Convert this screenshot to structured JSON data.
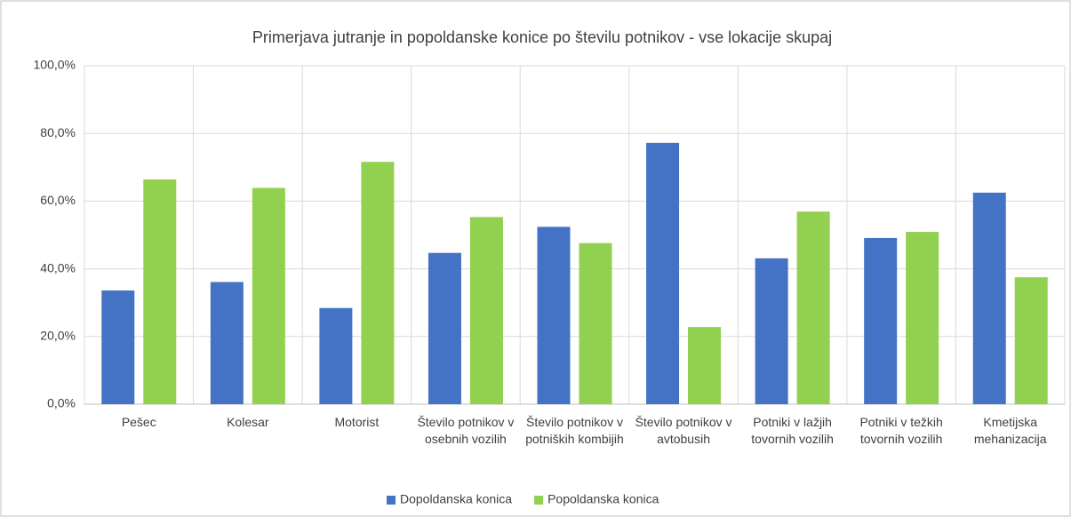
{
  "chart_data": {
    "type": "bar",
    "title": "Primerjava jutranje in popoldanske konice po številu potnikov - vse lokacije skupaj",
    "categories": [
      "Pešec",
      "Kolesar",
      "Motorist",
      "Število potnikov v osebnih vozilih",
      "Število potnikov v potniških kombijih",
      "Število potnikov v avtobusih",
      "Potniki v lažjih tovornih vozilih",
      "Potniki v težkih tovornih vozilih",
      "Kmetijska mehanizacija"
    ],
    "series": [
      {
        "name": "Dopoldanska konica",
        "color": "#4472c4",
        "values": [
          33.6,
          36.1,
          28.4,
          44.7,
          52.4,
          77.2,
          43.1,
          49.1,
          62.5
        ]
      },
      {
        "name": "Popoldanska konica",
        "color": "#92d050",
        "values": [
          66.4,
          63.9,
          71.6,
          55.3,
          47.6,
          22.8,
          56.9,
          50.9,
          37.5
        ]
      }
    ],
    "ylim": [
      0,
      100
    ],
    "yticks": [
      {
        "value": 0,
        "label": "0,0%"
      },
      {
        "value": 20,
        "label": "20,0%"
      },
      {
        "value": 40,
        "label": "40,0%"
      },
      {
        "value": 60,
        "label": "60,0%"
      },
      {
        "value": 80,
        "label": "80,0%"
      },
      {
        "value": 100,
        "label": "100,0%"
      }
    ],
    "grid": true,
    "legend": "bottom"
  }
}
